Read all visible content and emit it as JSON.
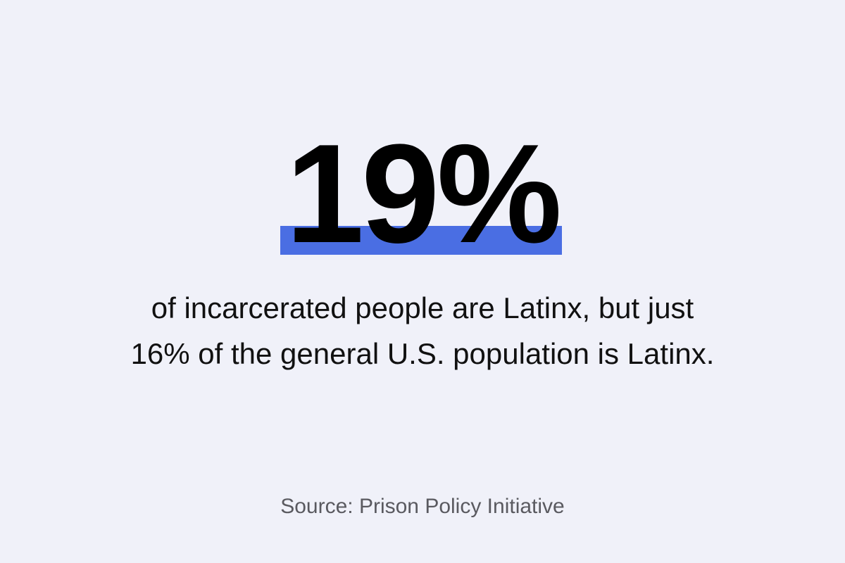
{
  "headline": "19%",
  "body": [
    "of incarcerated people are Latinx, but just",
    "16% of the general U.S. population is Latinx."
  ],
  "source": "Source: Prison Policy Initiative"
}
